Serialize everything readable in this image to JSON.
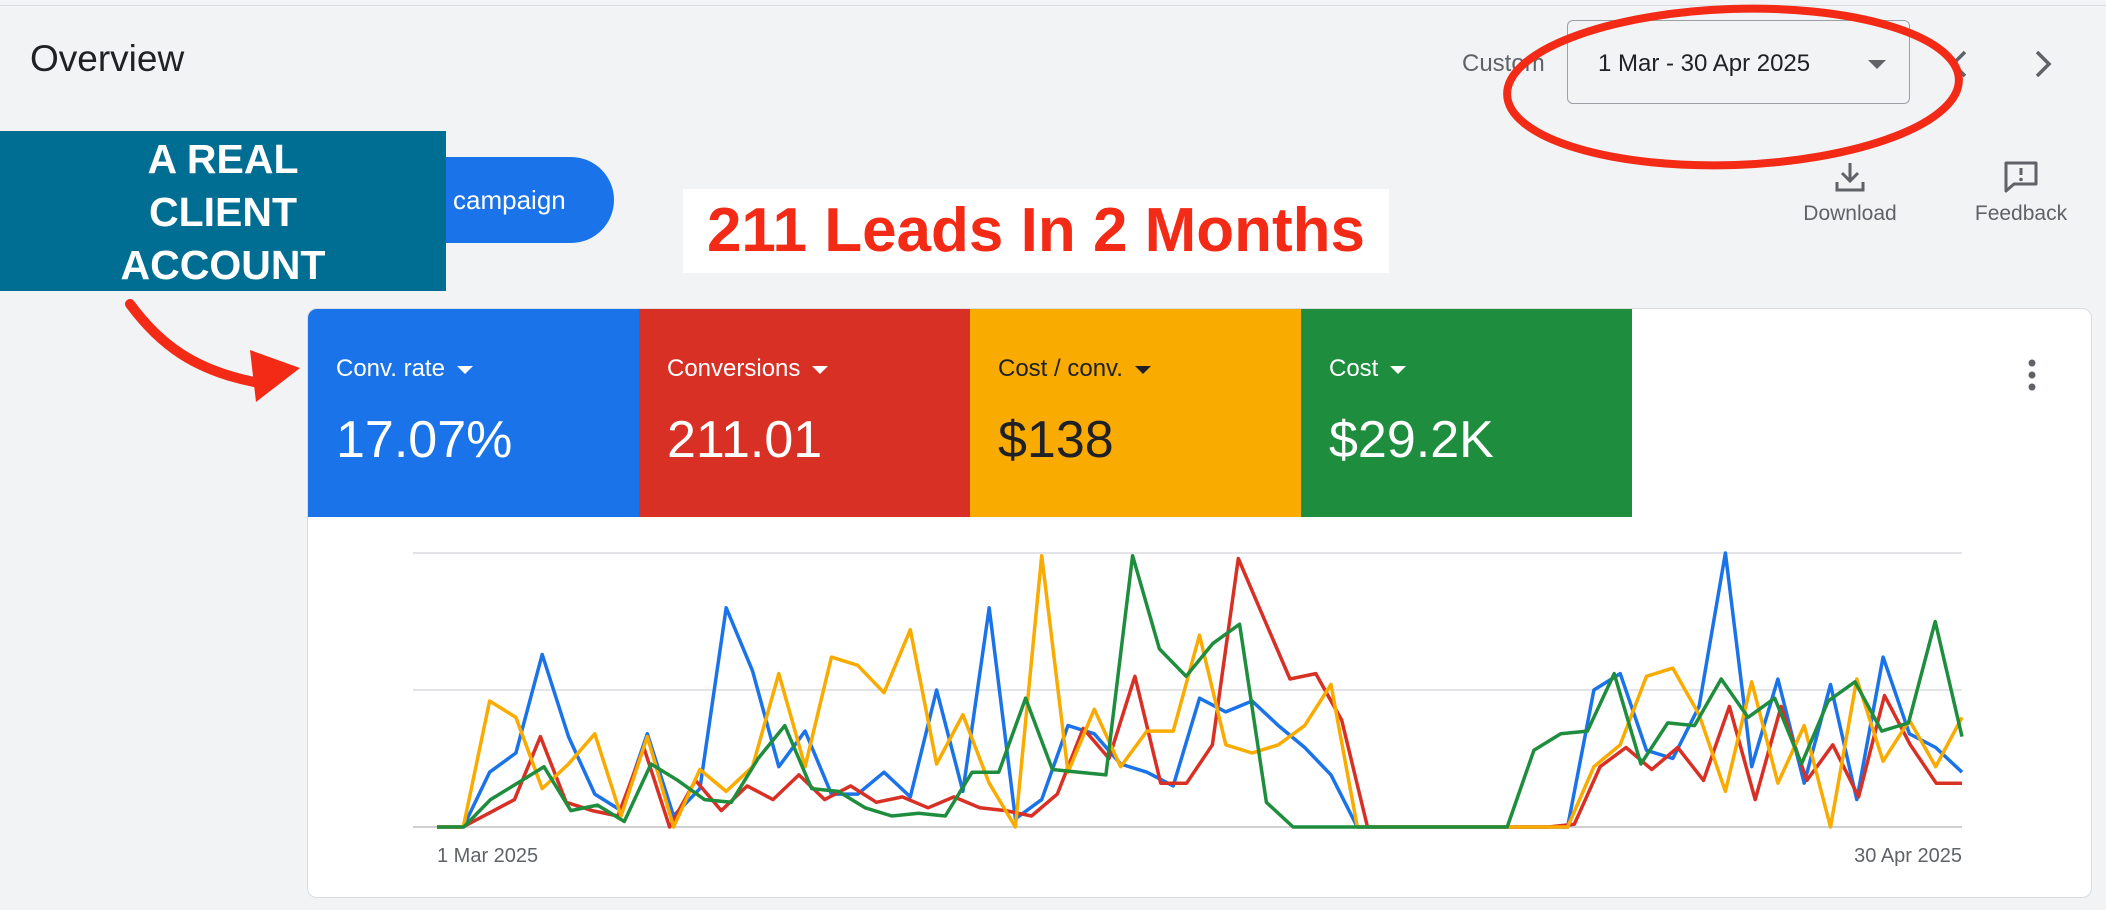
{
  "header": {
    "title": "Overview",
    "date_label": "Custom",
    "date_range": "1 Mar - 30 Apr 2025",
    "prev_icon": "chevron-left-icon",
    "next_icon": "chevron-right-icon"
  },
  "toolbar": {
    "campaign_label": "campaign",
    "download_label": "Download",
    "feedback_label": "Feedback"
  },
  "annotations": {
    "callout_lines": [
      "A REAL",
      "CLIENT",
      "ACCOUNT"
    ],
    "headline": "211 Leads In 2 Months",
    "highlight_color": "#f22a16"
  },
  "metrics": [
    {
      "name": "Conv. rate",
      "value": "17.07%",
      "color": "#1a73e8",
      "text_color": "#ffffff"
    },
    {
      "name": "Conversions",
      "value": "211.01",
      "color": "#d93025",
      "text_color": "#ffffff"
    },
    {
      "name": "Cost / conv.",
      "value": "$138",
      "color": "#f9ab00",
      "text_color": "#202124"
    },
    {
      "name": "Cost",
      "value": "$29.2K",
      "color": "#1e8e3e",
      "text_color": "#ffffff"
    }
  ],
  "chart_data": {
    "type": "line",
    "x_start": "1 Mar 2025",
    "x_end": "30 Apr 2025",
    "x_tick_labels": [
      "1 Mar 2025",
      "30 Apr 2025"
    ],
    "ylim": [
      0,
      100
    ],
    "grid": true,
    "series": [
      {
        "name": "Conv. rate",
        "color": "#1a73e8",
        "values": [
          0,
          0,
          20,
          27,
          63,
          33,
          12,
          6,
          34,
          4,
          14,
          80,
          57,
          22,
          35,
          12,
          12,
          20,
          11,
          50,
          13,
          80,
          3,
          10,
          37,
          34,
          23,
          20,
          15,
          47,
          42,
          46,
          37,
          29,
          19,
          0,
          0,
          0,
          0,
          0,
          0,
          0,
          0,
          0,
          50,
          56,
          28,
          25,
          44,
          100,
          22,
          54,
          16,
          52,
          10,
          62,
          34,
          29,
          20
        ]
      },
      {
        "name": "Conversions",
        "color": "#d93025",
        "values": [
          0,
          0,
          5,
          10,
          33,
          9,
          6,
          4,
          29,
          0,
          17,
          6,
          15,
          10,
          19,
          10,
          15,
          9,
          11,
          7,
          11,
          7,
          6,
          4,
          12,
          36,
          25,
          55,
          16,
          16,
          30,
          98,
          76,
          54,
          56,
          39,
          0,
          0,
          0,
          0,
          0,
          0,
          0,
          0,
          1,
          22,
          29,
          21,
          29,
          17,
          44,
          10,
          44,
          17,
          30,
          11,
          48,
          30,
          16,
          16
        ]
      },
      {
        "name": "Cost / conv.",
        "color": "#f9ab00",
        "values": [
          0,
          0,
          46,
          40,
          14,
          23,
          34,
          4,
          33,
          0,
          21,
          13,
          22,
          56,
          22,
          62,
          59,
          49,
          72,
          23,
          41,
          16,
          0,
          99,
          20,
          43,
          22,
          35,
          35,
          70,
          30,
          27,
          30,
          37,
          52,
          0,
          0,
          0,
          0,
          0,
          0,
          0,
          0,
          0,
          22,
          30,
          55,
          58,
          41,
          13,
          53,
          16,
          37,
          0,
          54,
          24,
          39,
          22,
          40
        ]
      },
      {
        "name": "Cost",
        "color": "#1e8e3e",
        "values": [
          0,
          0,
          10,
          16,
          22,
          6,
          8,
          2,
          23,
          17,
          10,
          9,
          25,
          37,
          14,
          13,
          7,
          4,
          5,
          4,
          20,
          20,
          47,
          21,
          20,
          19,
          99,
          65,
          55,
          67,
          74,
          9,
          0,
          0,
          0,
          0,
          0,
          0,
          0,
          0,
          0,
          28,
          34,
          35,
          56,
          23,
          38,
          37,
          54,
          40,
          47,
          23,
          46,
          53,
          35,
          38,
          75,
          33
        ]
      }
    ]
  }
}
